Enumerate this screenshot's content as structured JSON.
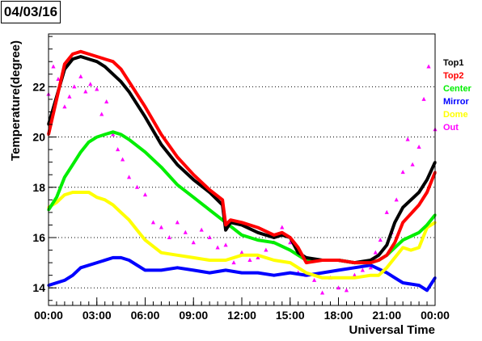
{
  "date_label": "04/03/16",
  "chart_data": {
    "type": "scatter",
    "title": "04/03/16",
    "xlabel": "Universal Time",
    "ylabel": "Temperature(degree)",
    "xlim": [
      0,
      24
    ],
    "ylim": [
      13.3,
      24.1
    ],
    "x_ticks": [
      {
        "value": 0,
        "label": "00:00"
      },
      {
        "value": 3,
        "label": "03:00"
      },
      {
        "value": 6,
        "label": "06:00"
      },
      {
        "value": 9,
        "label": "09:00"
      },
      {
        "value": 12,
        "label": "12:00"
      },
      {
        "value": 15,
        "label": "15:00"
      },
      {
        "value": 18,
        "label": "18:00"
      },
      {
        "value": 21,
        "label": "21:00"
      },
      {
        "value": 24,
        "label": "00:00"
      }
    ],
    "y_ticks": [
      {
        "value": 14,
        "label": "14"
      },
      {
        "value": 16,
        "label": "16"
      },
      {
        "value": 18,
        "label": "18"
      },
      {
        "value": 20,
        "label": "20"
      },
      {
        "value": 22,
        "label": "22"
      }
    ],
    "grid": "horizontal-dotted",
    "legend_position": "right",
    "series": [
      {
        "name": "Top1",
        "color": "#000000",
        "x": [
          0,
          0.5,
          1,
          1.5,
          2,
          2.5,
          3,
          3.5,
          4,
          4.5,
          5,
          6,
          7,
          8,
          9,
          10,
          10.8,
          11,
          11.3,
          12,
          13,
          14,
          14.5,
          15,
          15.5,
          16,
          17,
          18,
          19,
          20,
          20.5,
          21,
          21.5,
          22,
          23,
          23.5,
          24
        ],
        "y": [
          20.5,
          21.6,
          22.7,
          23.1,
          23.2,
          23.1,
          23.0,
          22.8,
          22.5,
          22.2,
          21.8,
          20.8,
          19.7,
          18.9,
          18.3,
          17.8,
          17.3,
          16.3,
          16.6,
          16.5,
          16.2,
          16.0,
          16.1,
          16.0,
          15.4,
          15.2,
          15.1,
          15.1,
          15.0,
          15.1,
          15.3,
          15.7,
          16.6,
          17.2,
          17.8,
          18.3,
          19.0
        ]
      },
      {
        "name": "Top2",
        "color": "#ff0000",
        "x": [
          0,
          0.5,
          1,
          1.5,
          2,
          2.5,
          3,
          3.5,
          4,
          4.5,
          5,
          6,
          7,
          8,
          9,
          10,
          10.8,
          11,
          11.3,
          12,
          13,
          14,
          14.5,
          15,
          15.5,
          16,
          17,
          18,
          19,
          20,
          20.5,
          21,
          21.5,
          22,
          23,
          23.5,
          24
        ],
        "y": [
          20.1,
          21.5,
          22.9,
          23.3,
          23.4,
          23.3,
          23.2,
          23.1,
          23.0,
          22.7,
          22.2,
          21.2,
          20.1,
          19.2,
          18.5,
          17.9,
          17.5,
          16.5,
          16.7,
          16.6,
          16.4,
          16.1,
          16.2,
          16.0,
          15.6,
          15.0,
          15.1,
          15.1,
          15.0,
          15.0,
          15.1,
          15.3,
          15.8,
          16.6,
          17.3,
          17.8,
          18.6
        ]
      },
      {
        "name": "Center",
        "color": "#00ee00",
        "x": [
          0,
          0.5,
          1,
          1.5,
          2,
          2.5,
          3,
          3.5,
          4,
          4.5,
          5,
          6,
          7,
          8,
          9,
          10,
          11,
          12,
          13,
          14,
          15,
          15.5,
          16,
          17,
          18,
          19,
          20,
          20.5,
          21,
          21.5,
          22,
          23,
          23.5,
          24
        ],
        "y": [
          17.1,
          17.6,
          18.4,
          18.9,
          19.4,
          19.8,
          20.0,
          20.1,
          20.2,
          20.1,
          19.9,
          19.4,
          18.8,
          18.1,
          17.6,
          17.1,
          16.6,
          16.1,
          15.9,
          15.8,
          15.5,
          15.3,
          15.1,
          15.1,
          15.1,
          15.0,
          15.0,
          15.1,
          15.3,
          15.6,
          15.9,
          16.2,
          16.5,
          16.9
        ]
      },
      {
        "name": "Mirror",
        "color": "#0000ff",
        "x": [
          0,
          0.5,
          1,
          1.5,
          2,
          3,
          4,
          4.5,
          5,
          6,
          7,
          8,
          9,
          10,
          11,
          12,
          13,
          14,
          15,
          16,
          17,
          18,
          19,
          20,
          21,
          21.5,
          22,
          23,
          23.5,
          24
        ],
        "y": [
          14.1,
          14.2,
          14.3,
          14.5,
          14.8,
          15.0,
          15.2,
          15.2,
          15.1,
          14.7,
          14.7,
          14.8,
          14.7,
          14.6,
          14.7,
          14.6,
          14.6,
          14.5,
          14.6,
          14.5,
          14.6,
          14.7,
          14.8,
          14.9,
          14.6,
          14.4,
          14.2,
          14.1,
          13.9,
          14.4
        ]
      },
      {
        "name": "Dome",
        "color": "#ffff00",
        "x": [
          0,
          0.5,
          1,
          1.5,
          2,
          2.5,
          3,
          3.5,
          4,
          4.5,
          5,
          5.5,
          6,
          7,
          8,
          9,
          10,
          11,
          12,
          13,
          14,
          15,
          15.5,
          16,
          17,
          18,
          19,
          20,
          20.5,
          21,
          21.5,
          22,
          22.5,
          23,
          23.5,
          24
        ],
        "y": [
          17.2,
          17.4,
          17.7,
          17.8,
          17.8,
          17.8,
          17.6,
          17.5,
          17.3,
          17.0,
          16.7,
          16.3,
          15.9,
          15.4,
          15.3,
          15.2,
          15.1,
          15.1,
          15.3,
          15.3,
          15.1,
          15.0,
          14.8,
          14.6,
          14.4,
          14.4,
          14.4,
          14.5,
          14.5,
          14.8,
          15.2,
          15.6,
          15.5,
          15.6,
          16.4,
          16.6
        ]
      },
      {
        "name": "Out",
        "color": "#ff00ff",
        "x": [
          0,
          0.3,
          0.6,
          1,
          1.3,
          1.6,
          2,
          2.3,
          2.6,
          3,
          3.3,
          3.6,
          4,
          4.3,
          4.6,
          5,
          5.5,
          6,
          6.5,
          7,
          7.5,
          8,
          8.5,
          9,
          9.5,
          10,
          10.5,
          11,
          11.5,
          12,
          12.5,
          13,
          13.5,
          14,
          14.5,
          15,
          15.5,
          16,
          16.5,
          17,
          17.5,
          18,
          18.5,
          19,
          19.5,
          20,
          20.3,
          20.6,
          21,
          21.3,
          21.6,
          22,
          22.3,
          22.6,
          23,
          23.3,
          23.6,
          24
        ],
        "y": [
          21.7,
          22.8,
          22.3,
          21.2,
          21.6,
          22.0,
          22.4,
          21.8,
          22.1,
          21.9,
          20.9,
          21.4,
          20.1,
          19.5,
          19.1,
          18.4,
          18.0,
          17.7,
          16.6,
          16.4,
          16.0,
          16.6,
          16.2,
          15.8,
          16.3,
          16.0,
          15.6,
          15.7,
          15.0,
          15.4,
          15.1,
          15.2,
          15.5,
          15.8,
          16.4,
          15.8,
          14.6,
          14.5,
          14.3,
          13.8,
          14.4,
          14.0,
          13.9,
          14.5,
          14.7,
          14.8,
          15.4,
          15.9,
          17.0,
          16.2,
          17.5,
          18.6,
          19.9,
          18.9,
          19.6,
          21.5,
          22.8,
          20.3
        ]
      }
    ]
  }
}
